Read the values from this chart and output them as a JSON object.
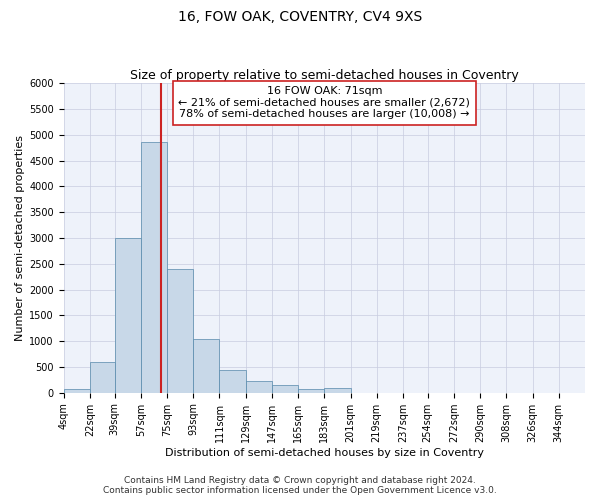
{
  "title": "16, FOW OAK, COVENTRY, CV4 9XS",
  "subtitle": "Size of property relative to semi-detached houses in Coventry",
  "xlabel": "Distribution of semi-detached houses by size in Coventry",
  "ylabel": "Number of semi-detached properties",
  "footer_line1": "Contains HM Land Registry data © Crown copyright and database right 2024.",
  "footer_line2": "Contains public sector information licensed under the Open Government Licence v3.0.",
  "property_size": 71,
  "property_label": "16 FOW OAK: 71sqm",
  "annotation_smaller": "← 21% of semi-detached houses are smaller (2,672)",
  "annotation_larger": "78% of semi-detached houses are larger (10,008) →",
  "bar_color": "#c8d8e8",
  "bar_edge_color": "#5588aa",
  "vline_color": "#cc2222",
  "annotation_box_edge_color": "#cc2222",
  "grid_color": "#c8cce0",
  "background_color": "#eef2fa",
  "bin_edges": [
    4,
    22,
    39,
    57,
    75,
    93,
    111,
    129,
    147,
    165,
    183,
    201,
    219,
    237,
    254,
    272,
    290,
    308,
    326,
    344,
    362
  ],
  "bin_values": [
    75,
    600,
    3000,
    4850,
    2400,
    1050,
    450,
    225,
    140,
    75,
    100,
    0,
    0,
    0,
    0,
    0,
    0,
    0,
    0,
    0
  ],
  "ylim": [
    0,
    6000
  ],
  "yticks": [
    0,
    500,
    1000,
    1500,
    2000,
    2500,
    3000,
    3500,
    4000,
    4500,
    5000,
    5500,
    6000
  ],
  "title_fontsize": 10,
  "subtitle_fontsize": 9,
  "label_fontsize": 8,
  "tick_fontsize": 7,
  "annotation_fontsize": 8,
  "footer_fontsize": 6.5
}
